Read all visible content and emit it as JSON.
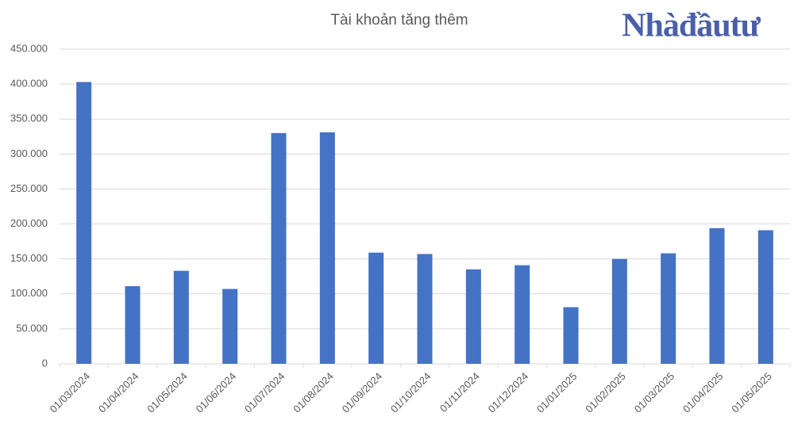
{
  "chart_data": {
    "type": "bar",
    "title": "Tài khoản tăng thêm",
    "watermark": "Nhàđầutư",
    "categories": [
      "01/03/2024",
      "01/04/2024",
      "01/05/2024",
      "01/06/2024",
      "01/07/2024",
      "01/08/2024",
      "01/09/2024",
      "01/10/2024",
      "01/11/2024",
      "01/12/2024",
      "01/01/2025",
      "01/02/2025",
      "01/03/2025",
      "01/04/2025",
      "01/05/2025"
    ],
    "values": [
      403000,
      111000,
      133000,
      107000,
      330000,
      331000,
      159000,
      157000,
      135000,
      141000,
      81000,
      150000,
      158000,
      194000,
      191000
    ],
    "color": "#4472c4",
    "ylim": [
      0,
      450000
    ],
    "yticks": [
      0,
      {
        "value": 50000,
        "label": "50.000"
      },
      {
        "value": 100000,
        "label": "100.000"
      },
      {
        "value": 150000,
        "label": "150.000"
      },
      {
        "value": 200000,
        "label": "200.000"
      },
      {
        "value": 250000,
        "label": "250.000"
      },
      {
        "value": 300000,
        "label": "300.000"
      },
      {
        "value": 350000,
        "label": "350.000"
      },
      {
        "value": 400000,
        "label": "400.000"
      },
      {
        "value": 450000,
        "label": "450.000"
      }
    ],
    "grid": true
  }
}
